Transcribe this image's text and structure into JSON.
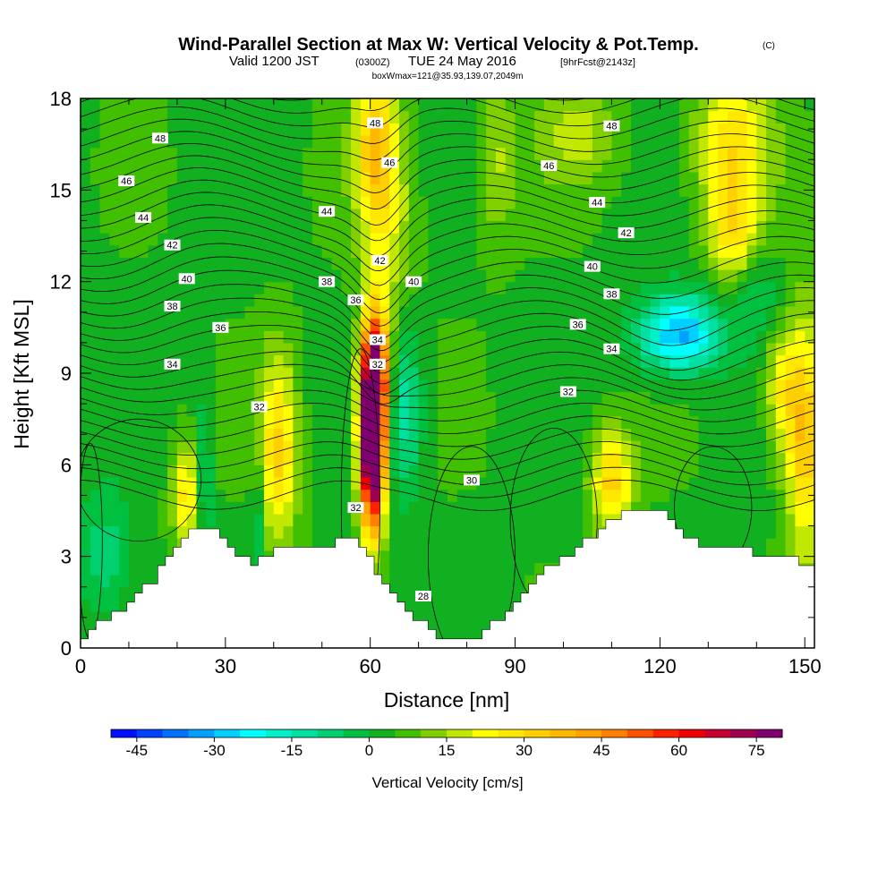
{
  "title": {
    "main": "Wind-Parallel Section at Max W: Vertical Velocity & Pot.Temp.",
    "copyright": "(C)",
    "valid_prefix": "Valid 1200 JST",
    "valid_z": "(0300Z)",
    "valid_date": "TUE 24 May 2016",
    "fcst": "[9hrFcst@2143z]",
    "box": "boxWmax=121@35.93,139.07,2049m"
  },
  "chart_data": {
    "type": "heatmap",
    "title": "Wind-Parallel Section at Max W: Vertical Velocity & Pot.Temp.",
    "xlabel": "Distance [nm]",
    "ylabel": "Height [Kft MSL]",
    "xlim": [
      0,
      152
    ],
    "ylim": [
      0,
      18
    ],
    "x_ticks": [
      0,
      30,
      60,
      90,
      120,
      150
    ],
    "y_ticks": [
      0,
      3,
      6,
      9,
      12,
      15,
      18
    ],
    "colorbar": {
      "label": "Vertical Velocity [cm/s]",
      "ticks": [
        -45,
        -30,
        -15,
        0,
        15,
        30,
        45,
        60,
        75
      ],
      "bins": [
        -50,
        -45,
        -40,
        -35,
        -30,
        -25,
        -20,
        -15,
        -10,
        -5,
        0,
        5,
        10,
        15,
        20,
        25,
        30,
        35,
        40,
        45,
        50,
        55,
        60,
        65,
        70,
        75,
        80
      ],
      "colors": [
        "#0010ff",
        "#0040ff",
        "#0070ff",
        "#00a0ff",
        "#00d0ff",
        "#00ffff",
        "#00f0c8",
        "#00e0a0",
        "#00d070",
        "#00c040",
        "#10b020",
        "#40c000",
        "#80d000",
        "#c0e800",
        "#ffff00",
        "#ffe800",
        "#ffd000",
        "#ffb800",
        "#ffa000",
        "#ff8000",
        "#ff5000",
        "#ff2000",
        "#f00000",
        "#c80030",
        "#a00050",
        "#800070"
      ]
    },
    "updrafts": [
      {
        "x": 60.5,
        "z": 7.0,
        "w_max": 121
      },
      {
        "x": 41.0,
        "z": 6.5,
        "w": 30
      },
      {
        "x": 22.0,
        "z": 5.0,
        "w": 25
      },
      {
        "x": 110.0,
        "z": 5.5,
        "w": 30
      },
      {
        "x": 135.0,
        "z": 16.5,
        "w": 25
      },
      {
        "x": 150.0,
        "z": 7.0,
        "w": 30
      }
    ],
    "downdrafts": [
      {
        "x": 67.0,
        "z": 8.0,
        "w": -15
      },
      {
        "x": 25.5,
        "z": 5.5,
        "w": -15
      },
      {
        "x": 124.0,
        "z": 10.3,
        "w": -32
      },
      {
        "x": 36.5,
        "z": 4.0,
        "w": -15
      }
    ],
    "terrain_profile": {
      "x": [
        0,
        3,
        6,
        9,
        12,
        15,
        18,
        21,
        24,
        27,
        30,
        33,
        36,
        39,
        42,
        45,
        48,
        51,
        54,
        57,
        60,
        63,
        66,
        69,
        72,
        75,
        78,
        81,
        84,
        87,
        90,
        93,
        96,
        99,
        102,
        105,
        108,
        111,
        114,
        117,
        120,
        123,
        126,
        129,
        132,
        135,
        138,
        141,
        144,
        147,
        150,
        152
      ],
      "height_kft": [
        0.3,
        0.7,
        1.0,
        1.3,
        1.7,
        2.2,
        2.8,
        3.4,
        3.9,
        3.9,
        3.6,
        3.0,
        2.7,
        3.0,
        3.3,
        3.3,
        3.3,
        3.3,
        3.6,
        3.6,
        3.0,
        2.0,
        1.5,
        1.0,
        0.7,
        0.3,
        0.3,
        0.3,
        0.6,
        1.0,
        1.5,
        2.0,
        2.5,
        2.8,
        3.2,
        3.5,
        3.9,
        4.2,
        4.5,
        4.5,
        4.5,
        4.0,
        3.6,
        3.3,
        3.3,
        3.3,
        3.3,
        3.0,
        3.0,
        3.0,
        2.8,
        2.8
      ]
    },
    "pot_temp_contour_labels": [
      {
        "value": "48",
        "x": 16.5,
        "z": 16.7
      },
      {
        "value": "46",
        "x": 9.5,
        "z": 15.3
      },
      {
        "value": "44",
        "x": 13.0,
        "z": 14.1
      },
      {
        "value": "42",
        "x": 19.0,
        "z": 13.2
      },
      {
        "value": "40",
        "x": 22.0,
        "z": 12.1
      },
      {
        "value": "38",
        "x": 19.0,
        "z": 11.2
      },
      {
        "value": "36",
        "x": 29.0,
        "z": 10.5
      },
      {
        "value": "34",
        "x": 19.0,
        "z": 9.3
      },
      {
        "value": "32",
        "x": 37.0,
        "z": 7.9
      },
      {
        "value": "48",
        "x": 61.0,
        "z": 17.2
      },
      {
        "value": "46",
        "x": 64.0,
        "z": 15.9
      },
      {
        "value": "44",
        "x": 51.0,
        "z": 14.3
      },
      {
        "value": "42",
        "x": 62.0,
        "z": 12.7
      },
      {
        "value": "40",
        "x": 69.0,
        "z": 12.0
      },
      {
        "value": "38",
        "x": 51.0,
        "z": 12.0
      },
      {
        "value": "36",
        "x": 57.0,
        "z": 11.4
      },
      {
        "value": "34",
        "x": 61.5,
        "z": 10.1
      },
      {
        "value": "32",
        "x": 61.5,
        "z": 9.3
      },
      {
        "value": "32",
        "x": 57.0,
        "z": 4.6
      },
      {
        "value": "28",
        "x": 71.0,
        "z": 1.7
      },
      {
        "value": "30",
        "x": 81.0,
        "z": 5.5
      },
      {
        "value": "48",
        "x": 110.0,
        "z": 17.1
      },
      {
        "value": "46",
        "x": 97.0,
        "z": 15.8
      },
      {
        "value": "44",
        "x": 107.0,
        "z": 14.6
      },
      {
        "value": "42",
        "x": 113.0,
        "z": 13.6
      },
      {
        "value": "40",
        "x": 106.0,
        "z": 12.5
      },
      {
        "value": "38",
        "x": 110.0,
        "z": 11.6
      },
      {
        "value": "36",
        "x": 103.0,
        "z": 10.6
      },
      {
        "value": "34",
        "x": 110.0,
        "z": 9.8
      },
      {
        "value": "32",
        "x": 101.0,
        "z": 8.4
      }
    ]
  }
}
